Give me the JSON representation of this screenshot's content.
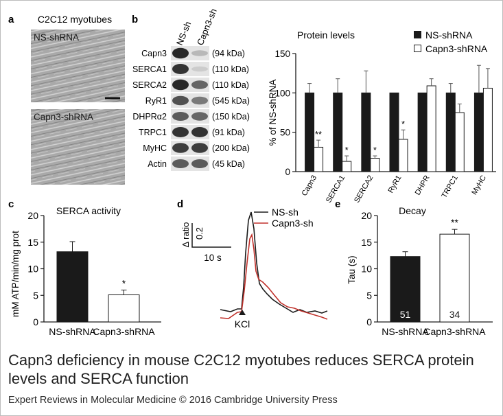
{
  "caption": {
    "title": "Capn3 deficiency in mouse C2C12 myotubes reduces SERCA protein levels and SERCA function",
    "credit": "Expert Reviews in Molecular Medicine © 2016 Cambridge University Press"
  },
  "panel_a": {
    "letter": "a",
    "title": "C2C12 myotubes",
    "image_labels": [
      "NS-shRNA",
      "Capn3-shRNA"
    ]
  },
  "panel_b": {
    "letter": "b",
    "blot_columns": [
      "NS-sh",
      "Capn3-sh"
    ],
    "blot_rows": [
      {
        "protein": "Capn3",
        "size": "(94 kDa)"
      },
      {
        "protein": "SERCA1",
        "size": "(110 kDa)"
      },
      {
        "protein": "SERCA2",
        "size": "(110 kDa)"
      },
      {
        "protein": "RyR1",
        "size": "(545 kDa)"
      },
      {
        "protein": "DHPRα2",
        "size": "(150 kDa)"
      },
      {
        "protein": "TRPC1",
        "size": "(91 kDa)"
      },
      {
        "protein": "MyHC",
        "size": "(200 kDa)"
      },
      {
        "protein": "Actin",
        "size": "(45 kDa)"
      }
    ]
  },
  "panel_d": {
    "letter": "d",
    "legend": [
      "NS-sh",
      "Capn3-sh"
    ],
    "scale_y_label": "Δ ratio",
    "scale_y_value": "0.2",
    "scale_x_label": "10 s",
    "stimulus_label": "KCl",
    "colors": {
      "ns": "#1a1a1a",
      "capn3": "#c0312b"
    }
  },
  "chart_data": [
    {
      "type": "bar",
      "panel": "b",
      "title": "Protein levels",
      "xlabel": "",
      "ylabel": "% of NS-shRNA",
      "ylim": [
        0,
        150
      ],
      "yticks": [
        0,
        50,
        100,
        150
      ],
      "categories": [
        "Capn3",
        "SERCA1",
        "SERCA2",
        "RyR1",
        "DHPR",
        "TRPC1",
        "MyHC"
      ],
      "series": [
        {
          "name": "NS-shRNA",
          "fill": "#1a1a1a",
          "values": [
            100,
            100,
            100,
            100,
            100,
            100,
            100
          ],
          "errors": [
            12,
            18,
            28,
            0,
            0,
            12,
            35
          ]
        },
        {
          "name": "Capn3-shRNA",
          "fill": "#ffffff",
          "values": [
            31,
            13,
            17,
            41,
            109,
            75,
            106
          ],
          "errors": [
            9,
            7,
            3,
            12,
            9,
            11,
            25
          ]
        }
      ],
      "annotations": [
        "**",
        "*",
        "*",
        "*",
        "",
        "",
        ""
      ],
      "legend": "top-right"
    },
    {
      "type": "bar",
      "panel": "c",
      "letter": "c",
      "title": "SERCA activity",
      "xlabel": "",
      "ylabel": "mM ATP/min/mg prot",
      "ylim": [
        0,
        20
      ],
      "yticks": [
        0,
        5,
        10,
        15,
        20
      ],
      "categories": [
        "NS-shRNA",
        "Capn3-shRNA"
      ],
      "values": [
        13.2,
        5.1
      ],
      "errors": [
        1.9,
        0.9
      ],
      "fills": [
        "#1a1a1a",
        "#ffffff"
      ],
      "annotations": [
        "",
        "*"
      ]
    },
    {
      "type": "bar",
      "panel": "e",
      "letter": "e",
      "title": "Decay",
      "xlabel": "",
      "ylabel": "Tau (s)",
      "ylim": [
        0,
        20
      ],
      "yticks": [
        0,
        5,
        10,
        15,
        20
      ],
      "categories": [
        "NS-shRNA",
        "Capn3-shRNA"
      ],
      "values": [
        12.3,
        16.5
      ],
      "errors": [
        0.9,
        0.9
      ],
      "fills": [
        "#1a1a1a",
        "#ffffff"
      ],
      "n_labels": [
        "51",
        "34"
      ],
      "annotations": [
        "",
        "**"
      ]
    }
  ]
}
